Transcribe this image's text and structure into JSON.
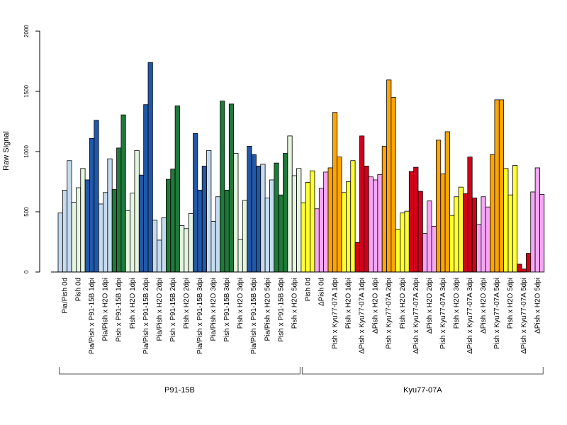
{
  "chart_data": {
    "type": "bar",
    "ylabel": "Raw Signal",
    "ylim": [
      0,
      2000
    ],
    "y_ticks": [
      0,
      500,
      1000,
      1500,
      2000
    ],
    "grid": false,
    "legend": "none",
    "groups": [
      {
        "name": "P91-15B",
        "categories": [
          {
            "label": "Pia/Pish 0d",
            "color": "#c6dbef",
            "values": [
              490,
              680,
              925
            ]
          },
          {
            "label": "Pish 0d",
            "color": "#e5f5e0",
            "values": [
              580,
              700,
              860
            ]
          },
          {
            "label": "Pia/Pish x P91-15B 1dpi",
            "color": "#2158a8",
            "values": [
              765,
              1110,
              1260
            ]
          },
          {
            "label": "Pia/Pish x H2O 1dpi",
            "color": "#c6dbef",
            "values": [
              565,
              660,
              940
            ]
          },
          {
            "label": "Pish x P91-15B 1dpi",
            "color": "#1f7a3a",
            "values": [
              685,
              1030,
              1305
            ]
          },
          {
            "label": "Pish x H2O 1dpi",
            "color": "#e5f5e0",
            "values": [
              510,
              655,
              1010
            ]
          },
          {
            "label": "Pia/Pish x P91-15B 2dpi",
            "color": "#2158a8",
            "values": [
              805,
              1390,
              1740
            ]
          },
          {
            "label": "Pia/Pish x H2O 2dpi",
            "color": "#c6dbef",
            "values": [
              430,
              265,
              450
            ]
          },
          {
            "label": "Pish x P91-15B 2dpi",
            "color": "#1f7a3a",
            "values": [
              770,
              855,
              1380
            ]
          },
          {
            "label": "Pish x H2O 2dpi",
            "color": "#e5f5e0",
            "values": [
              385,
              360,
              485
            ]
          },
          {
            "label": "Pia/Pish x P91-15B 3dpi",
            "color": "#2158a8",
            "values": [
              1150,
              680,
              880
            ]
          },
          {
            "label": "Pia/Pish x H2O 3dpi",
            "color": "#c6dbef",
            "values": [
              1010,
              420,
              625
            ]
          },
          {
            "label": "Pish x P91-15B 3dpi",
            "color": "#1f7a3a",
            "values": [
              1420,
              680,
              1395
            ]
          },
          {
            "label": "Pish x H2O 3dpi",
            "color": "#e5f5e0",
            "values": [
              985,
              270,
              595
            ]
          },
          {
            "label": "Pia/Pish x P91-15B 5dpi",
            "color": "#2158a8",
            "values": [
              1045,
              975,
              880
            ]
          },
          {
            "label": "Pia/Pish x H2O 5dpi",
            "color": "#c6dbef",
            "values": [
              895,
              615,
              765
            ]
          },
          {
            "label": "Pish x P91-15B 5dpi",
            "color": "#1f7a3a",
            "values": [
              905,
              640,
              985
            ]
          },
          {
            "label": "Pish x H2O 5dpi",
            "color": "#e5f5e0",
            "values": [
              1130,
              800,
              860
            ]
          }
        ]
      },
      {
        "name": "Kyu77-07A",
        "categories": [
          {
            "label": "Pish 0d",
            "color": "#ffff33",
            "values": [
              575,
              745,
              840
            ]
          },
          {
            "label": "ΔPish 0d",
            "color": "#f7a6f7",
            "values": [
              525,
              695,
              830
            ]
          },
          {
            "label": "Pish x Kyu77-07A 1dpi",
            "color": "#ffa500",
            "values": [
              865,
              1325,
              955
            ]
          },
          {
            "label": "Pish x H2O 1dpi",
            "color": "#ffff33",
            "values": [
              660,
              750,
              925
            ]
          },
          {
            "label": "ΔPish x Kyu77-07A 1dpi",
            "color": "#d0021b",
            "values": [
              245,
              1130,
              880
            ]
          },
          {
            "label": "ΔPish x H2O 1dpi",
            "color": "#f7a6f7",
            "values": [
              790,
              765,
              810
            ]
          },
          {
            "label": "Pish x Kyu77-07A 2dpi",
            "color": "#ffa500",
            "values": [
              1045,
              1595,
              1450
            ]
          },
          {
            "label": "Pish x H2O 2dpi",
            "color": "#ffff33",
            "values": [
              355,
              490,
              505
            ]
          },
          {
            "label": "ΔPish x Kyu77-07A 2dpi",
            "color": "#d0021b",
            "values": [
              835,
              870,
              670
            ]
          },
          {
            "label": "ΔPish x H2O 2dpi",
            "color": "#f7a6f7",
            "values": [
              320,
              590,
              380
            ]
          },
          {
            "label": "Pish x Kyu77-07A 3dpi",
            "color": "#ffa500",
            "values": [
              1095,
              815,
              1165
            ]
          },
          {
            "label": "Pish x H2O 3dpi",
            "color": "#ffff33",
            "values": [
              470,
              625,
              705
            ]
          },
          {
            "label": "ΔPish x Kyu77-07A 3dpi",
            "color": "#d0021b",
            "values": [
              650,
              955,
              615
            ]
          },
          {
            "label": "ΔPish x H2O 3dpi",
            "color": "#f7a6f7",
            "values": [
              395,
              625,
              540
            ]
          },
          {
            "label": "Pish x Kyu77-07A 5dpi",
            "color": "#ffa500",
            "values": [
              975,
              1430,
              1430
            ]
          },
          {
            "label": "Pish x H2O 5dpi",
            "color": "#ffff33",
            "values": [
              860,
              640,
              885
            ]
          },
          {
            "label": "ΔPish x Kyu77-07A 5dpi",
            "color": "#d0021b",
            "values": [
              65,
              25,
              155
            ]
          },
          {
            "label": "ΔPish x H2O 5dpi",
            "color": "#f7a6f7",
            "values": [
              665,
              865,
              645
            ]
          }
        ]
      }
    ]
  }
}
